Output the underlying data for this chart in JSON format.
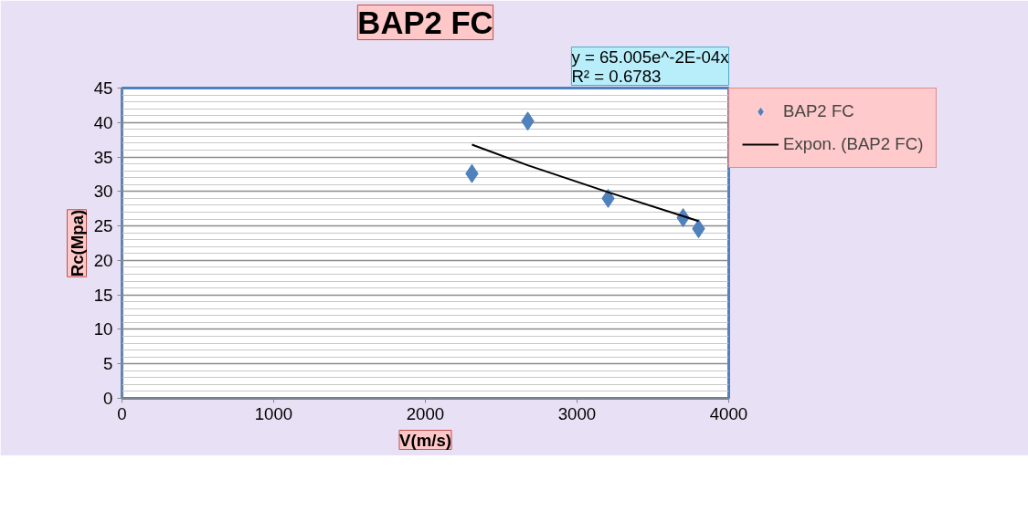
{
  "chart_data": {
    "type": "scatter",
    "title": "BAP2 FC",
    "xlabel": "V(m/s)",
    "ylabel": "Rc(Mpa)",
    "annotations": [
      "y = 65.005e^-2E-04x\nR² = 0.6783"
    ],
    "series": [
      {
        "name": "BAP2 FC",
        "color": "#4f81bd",
        "marker": "diamond",
        "x": [
          2307,
          2675,
          3205,
          3699,
          3801
        ],
        "values": [
          32.6,
          40.2,
          29.0,
          26.2,
          24.6
        ]
      },
      {
        "name": "Expon. (BAP2 FC)",
        "type": "line",
        "color": "#000000",
        "line_style": "solid",
        "x": [
          2307,
          2675,
          3205,
          3801
        ],
        "values": [
          36.8,
          33.8,
          29.9,
          25.7
        ]
      }
    ],
    "xlim": [
      0,
      4000
    ],
    "xticks": [
      0,
      1000,
      2000,
      3000,
      4000
    ],
    "ylim": [
      0,
      45
    ],
    "yticks": [
      0,
      5,
      10,
      15,
      20,
      25,
      30,
      35,
      40,
      45
    ],
    "grid": "y",
    "legend": "right"
  }
}
